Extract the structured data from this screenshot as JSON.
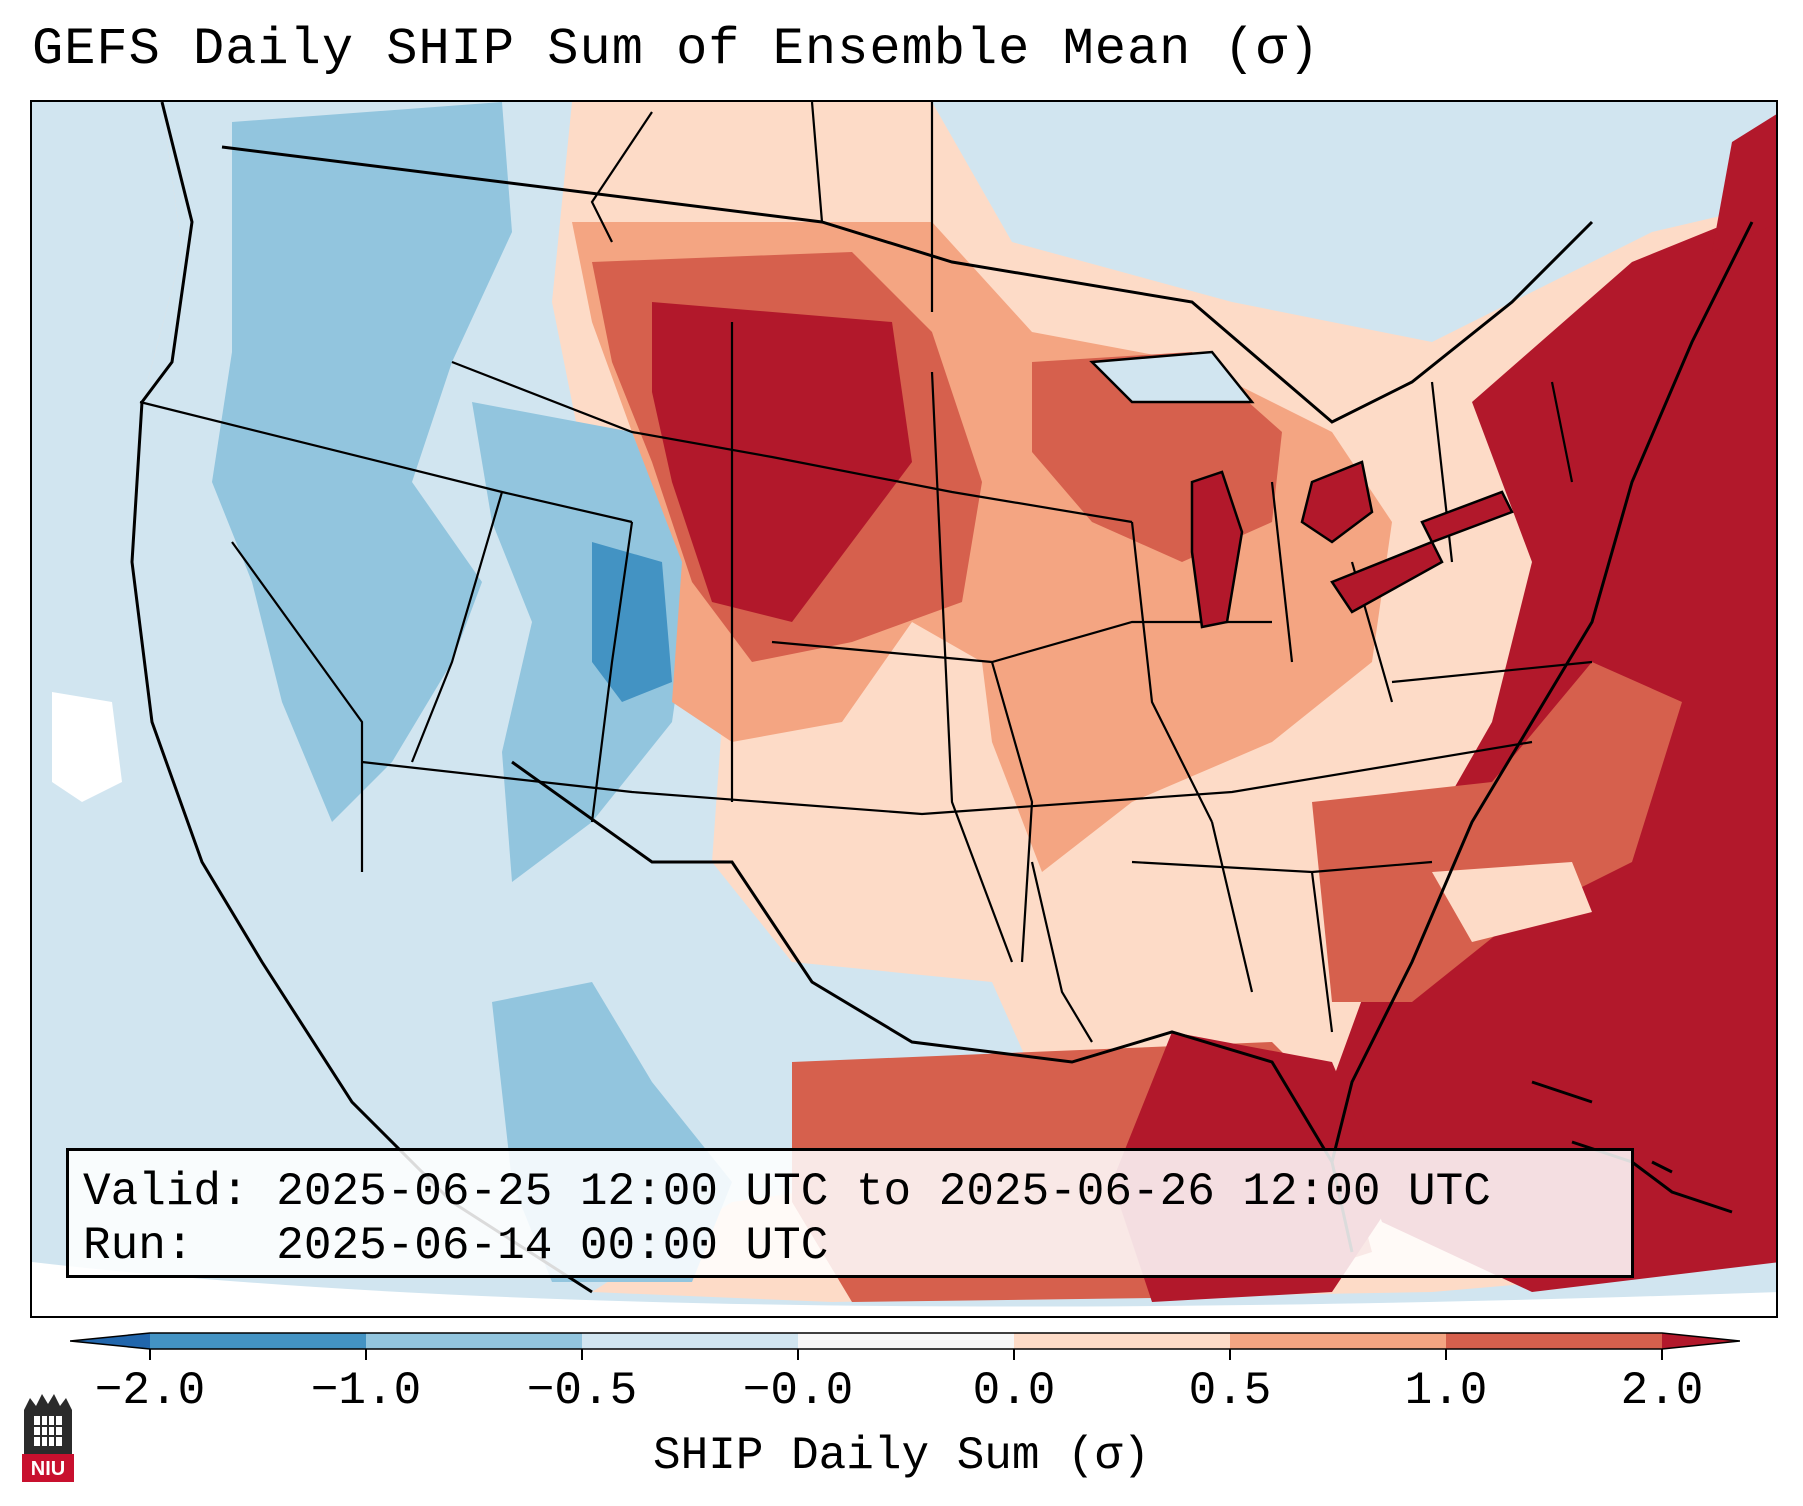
{
  "title": "GEFS Daily SHIP Sum of Ensemble Mean (σ)",
  "map": {
    "region": "Contiguous United States",
    "colors": {
      "ocean_background": "#d1e5f0",
      "land_light_blue": "#d1e5f0",
      "border_color": "#000000"
    }
  },
  "info_box": {
    "valid_label": "Valid:",
    "valid_value": "2025-06-25 12:00 UTC to 2025-06-26 12:00 UTC",
    "run_label": "Run:",
    "run_value": "2025-06-14 00:00 UTC"
  },
  "colorbar": {
    "ticks": [
      "−2.0",
      "−1.0",
      "−0.5",
      "−0.0",
      "0.0",
      "0.5",
      "1.0",
      "2.0"
    ],
    "label": "SHIP Daily Sum (σ)",
    "segment_colors": [
      "#4393c3",
      "#92c5de",
      "#d1e5f0",
      "#f7f7f7",
      "#fddbc7",
      "#f4a582",
      "#d6604d"
    ],
    "under_color": "#2166ac",
    "over_color": "#b2182b"
  },
  "logo": {
    "text": "NIU",
    "name": "niu-logo"
  }
}
